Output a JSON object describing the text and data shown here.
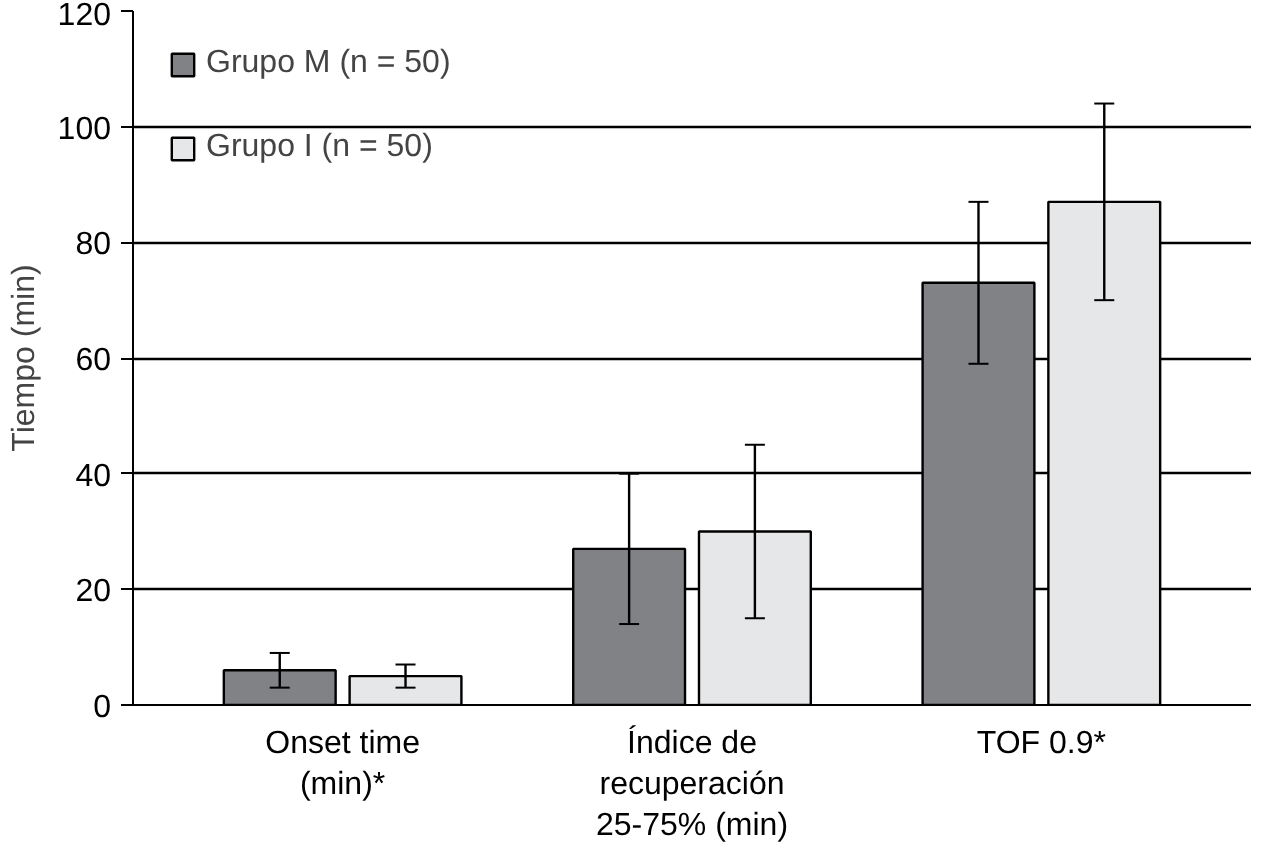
{
  "chart_data": {
    "type": "bar",
    "ylabel": "Tiempo (min)",
    "categories": [
      "Onset time\n(min)*",
      "Índice de\nrecuperación\n25-75% (min)",
      "TOF 0.9*"
    ],
    "series": [
      {
        "name": "Grupo M (n = 50)",
        "color": "#808285",
        "values": [
          6,
          27,
          73
        ],
        "errors": [
          3,
          13,
          14
        ]
      },
      {
        "name": "Grupo I (n = 50)",
        "color": "#e6e7e8",
        "values": [
          5,
          30,
          87
        ],
        "errors": [
          2,
          15,
          17
        ]
      }
    ],
    "ylim": [
      0,
      120
    ],
    "yticks": [
      0,
      20,
      40,
      60,
      80,
      100,
      120
    ],
    "grid": "y",
    "legend": "top left"
  }
}
